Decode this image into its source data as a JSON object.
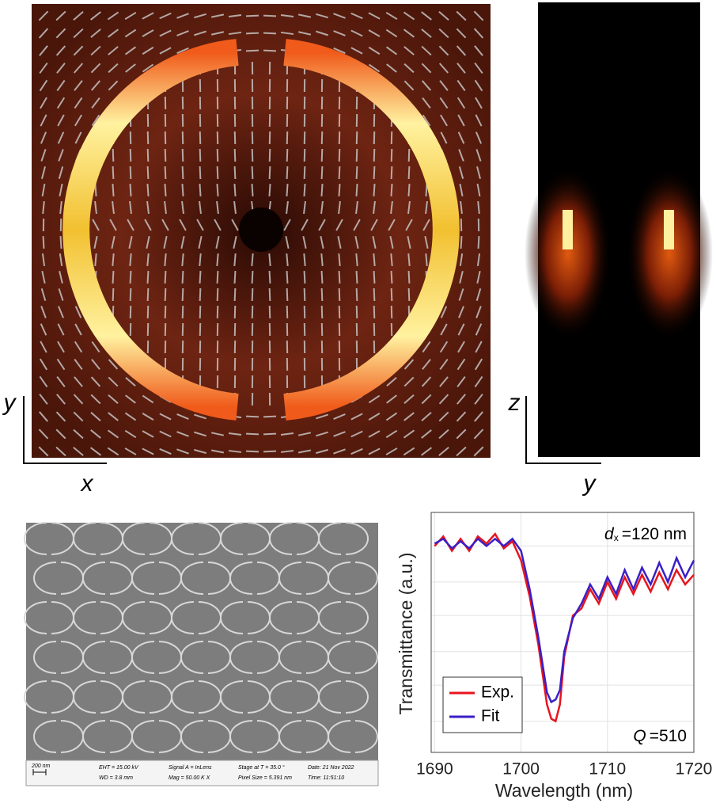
{
  "panels": {
    "field_map": {
      "x_label": "x",
      "y_label": "y"
    },
    "cross_section": {
      "x_label": "y",
      "y_label": "z"
    },
    "sem": {
      "scale_bar": "200 nm",
      "info": [
        "EHT = 15.00 kV",
        "WD = 3.8 mm",
        "Signal A = InLens",
        "Mag = 50.00 K X",
        "Stage at T = 35.0 °",
        "Pixel Size = 5.391 nm",
        "Date: 21 Nov 2022",
        "Time: 11:51:10"
      ]
    }
  },
  "chart_data": {
    "type": "line",
    "x_label": "Wavelength (nm)",
    "y_label": "Transmittance (a.u.)",
    "annotation_d": {
      "symbol": "d",
      "subscript": "x",
      "text": "=120 nm"
    },
    "annotation_q": {
      "symbol": "Q",
      "text": "=510"
    },
    "x": [
      1690,
      1691,
      1692,
      1693,
      1694,
      1695,
      1696,
      1697,
      1698,
      1699,
      1700,
      1701,
      1702,
      1703,
      1703.5,
      1704,
      1704.5,
      1705,
      1706,
      1707,
      1708,
      1709,
      1710,
      1711,
      1712,
      1713,
      1714,
      1715,
      1716,
      1717,
      1718,
      1719,
      1720
    ],
    "series": [
      {
        "name": "Exp.",
        "color": "#e8141c",
        "values": [
          0.86,
          0.9,
          0.84,
          0.89,
          0.84,
          0.9,
          0.87,
          0.91,
          0.85,
          0.88,
          0.8,
          0.65,
          0.45,
          0.2,
          0.14,
          0.13,
          0.2,
          0.4,
          0.57,
          0.6,
          0.68,
          0.62,
          0.71,
          0.64,
          0.73,
          0.66,
          0.74,
          0.67,
          0.75,
          0.68,
          0.76,
          0.7,
          0.74
        ]
      },
      {
        "name": "Fit",
        "color": "#3a1fc8",
        "values": [
          0.87,
          0.89,
          0.85,
          0.88,
          0.85,
          0.89,
          0.86,
          0.89,
          0.86,
          0.89,
          0.84,
          0.68,
          0.48,
          0.25,
          0.21,
          0.22,
          0.26,
          0.42,
          0.56,
          0.62,
          0.7,
          0.64,
          0.73,
          0.66,
          0.76,
          0.68,
          0.77,
          0.7,
          0.79,
          0.71,
          0.81,
          0.73,
          0.8
        ]
      }
    ],
    "xlim": [
      1689.6,
      1720
    ],
    "xticks": [
      1690,
      1700,
      1710,
      1720
    ],
    "ylim": [
      0,
      1
    ],
    "yticks": [
      0.13,
      0.28,
      0.42,
      0.57,
      0.71,
      0.86
    ],
    "grid": true,
    "legend": "lower left"
  }
}
